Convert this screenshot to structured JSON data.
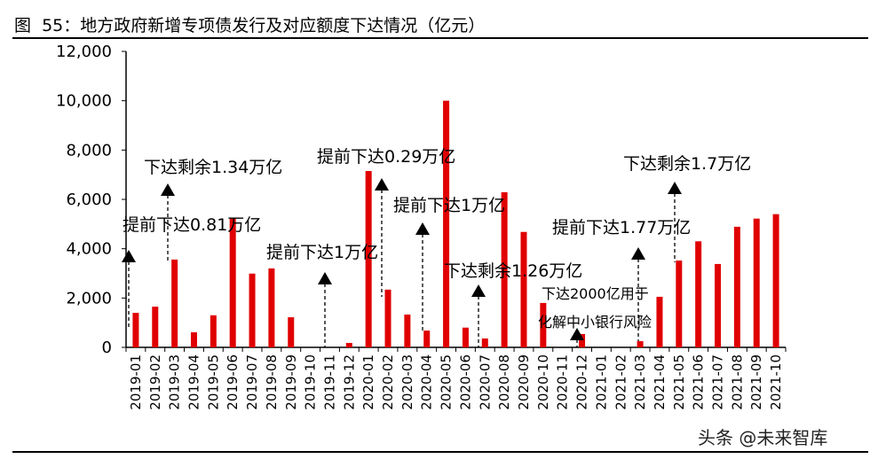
{
  "title": "图  55：地方政府新增专项债发行及对应额度下达情况（亿元）",
  "watermark": "头条 @未来智库",
  "chart_data": {
    "type": "bar",
    "title": "",
    "xlabel": "",
    "ylabel": "",
    "ylim": [
      0,
      12000
    ],
    "yticks": [
      "0",
      "2,000",
      "4,000",
      "6,000",
      "8,000",
      "10,000",
      "12,000"
    ],
    "grid": false,
    "bar_color": "#e00000",
    "categories": [
      "2019-01",
      "2019-02",
      "2019-03",
      "2019-04",
      "2019-05",
      "2019-06",
      "2019-07",
      "2019-08",
      "2019-09",
      "2019-10",
      "2019-11",
      "2019-12",
      "2020-01",
      "2020-02",
      "2020-03",
      "2020-04",
      "2020-05",
      "2020-06",
      "2020-07",
      "2020-08",
      "2020-09",
      "2020-10",
      "2020-11",
      "2020-12",
      "2021-01",
      "2021-02",
      "2021-03",
      "2021-04",
      "2021-05",
      "2021-06",
      "2021-07",
      "2021-08",
      "2021-09",
      "2021-10"
    ],
    "values": [
      1400,
      1650,
      3560,
      610,
      1300,
      5250,
      2990,
      3200,
      1220,
      0,
      0,
      180,
      7150,
      2340,
      1330,
      680,
      10000,
      800,
      360,
      6290,
      4680,
      1800,
      0,
      540,
      0,
      0,
      250,
      2050,
      3520,
      4300,
      3380,
      4890,
      5220,
      5400
    ],
    "annotations": [
      {
        "text": "提前下达0.81万亿",
        "category": "2019-01"
      },
      {
        "text": "下达剩余1.34万亿",
        "category": "2019-03"
      },
      {
        "text": "提前下达1万亿",
        "category": "2019-11"
      },
      {
        "text": "提前下达0.29万亿",
        "category": "2020-02"
      },
      {
        "text": "提前下达1万亿",
        "category": "2020-04"
      },
      {
        "text": "下达剩余1.26万亿",
        "category": "2020-07"
      },
      {
        "text": "下达2000亿用于",
        "text2": "化解中小银行风险",
        "category": "2020-12"
      },
      {
        "text": "提前下达1.77万亿",
        "category": "2021-03"
      },
      {
        "text": "下达剩余1.7万亿",
        "category": "2021-05"
      }
    ]
  }
}
